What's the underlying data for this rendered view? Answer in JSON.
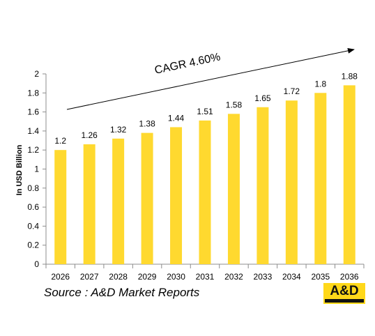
{
  "chart_data": {
    "type": "bar",
    "categories": [
      "2026",
      "2027",
      "2028",
      "2029",
      "2030",
      "2031",
      "2032",
      "2033",
      "2034",
      "2035",
      "2036"
    ],
    "values": [
      1.2,
      1.26,
      1.32,
      1.38,
      1.44,
      1.51,
      1.58,
      1.65,
      1.72,
      1.8,
      1.88
    ],
    "value_labels": [
      "1.2",
      "1.26",
      "1.32",
      "1.38",
      "1.44",
      "1.51",
      "1.58",
      "1.65",
      "1.72",
      "1.8",
      "1.88"
    ],
    "ylabel": "In USD Billion",
    "ylim": [
      0,
      2
    ],
    "yticks": [
      "0",
      "0.2",
      "0.4",
      "0.6",
      "0.8",
      "1",
      "1.2",
      "1.4",
      "1.6",
      "1.8",
      "2"
    ],
    "grid": false,
    "bar_color": "#ffd92f",
    "annotation": "CAGR 4.60%"
  },
  "source": "Source : A&D Market Reports",
  "logo": {
    "text": "A&D",
    "color": "#ffd81a"
  }
}
